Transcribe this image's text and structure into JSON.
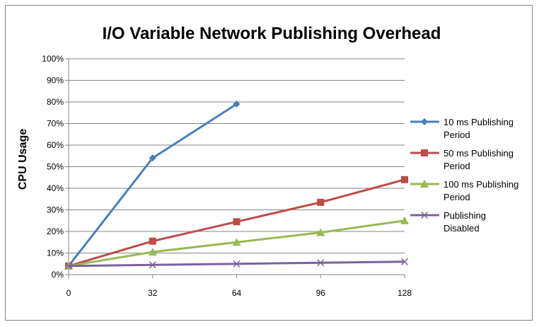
{
  "chart_data": {
    "type": "line",
    "title": "I/O Variable Network Publishing Overhead",
    "xlabel": "",
    "ylabel": "CPU Usage",
    "x": [
      0,
      32,
      64,
      96,
      128
    ],
    "x_tick_labels": [
      "0",
      "32",
      "64",
      "96",
      "128"
    ],
    "ylim": [
      0,
      100
    ],
    "y_tick_labels": [
      "0%",
      "10%",
      "20%",
      "30%",
      "40%",
      "50%",
      "60%",
      "70%",
      "80%",
      "90%",
      "100%"
    ],
    "grid": "horizontal",
    "legend_position": "right",
    "series": [
      {
        "name": "10 ms Publishing Period",
        "legend_lines": [
          "10 ms Publishing",
          "Period"
        ],
        "color": "#4A7EBB",
        "marker": "diamond",
        "values": [
          4,
          54,
          79,
          null,
          null
        ]
      },
      {
        "name": "50 ms Publishing Period",
        "legend_lines": [
          "50 ms Publishing",
          "Period"
        ],
        "color": "#BE4B48",
        "marker": "square",
        "values": [
          4,
          15.5,
          24.5,
          33.5,
          44
        ]
      },
      {
        "name": "100 ms Publishing Period",
        "legend_lines": [
          "100 ms Publishing",
          "Period"
        ],
        "color": "#98B954",
        "marker": "triangle",
        "values": [
          4,
          10.5,
          15,
          19.5,
          25
        ]
      },
      {
        "name": "Publishing Disabled",
        "legend_lines": [
          "Publishing",
          "Disabled"
        ],
        "color": "#7D60A0",
        "marker": "x",
        "values": [
          4,
          4.5,
          5,
          5.5,
          6
        ]
      }
    ]
  }
}
